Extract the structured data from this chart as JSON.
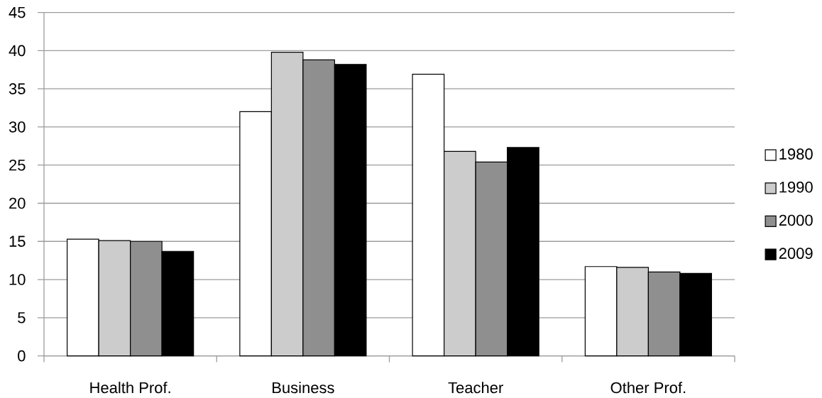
{
  "chart_data": {
    "type": "bar",
    "categories": [
      "Health Prof.",
      "Business",
      "Teacher",
      "Other Prof."
    ],
    "series": [
      {
        "name": "1980",
        "color": "#ffffff",
        "values": [
          15.3,
          32.0,
          36.9,
          11.7
        ]
      },
      {
        "name": "1990",
        "color": "#cccccc",
        "values": [
          15.1,
          39.8,
          26.8,
          11.6
        ]
      },
      {
        "name": "2000",
        "color": "#8f8f8f",
        "values": [
          15.0,
          38.8,
          25.4,
          11.0
        ]
      },
      {
        "name": "2009",
        "color": "#000000",
        "values": [
          13.7,
          38.2,
          27.3,
          10.8
        ]
      }
    ],
    "ylim": [
      0,
      45
    ],
    "yticks": [
      0,
      5,
      10,
      15,
      20,
      25,
      30,
      35,
      40,
      45
    ],
    "grid": "y",
    "legend": "right"
  }
}
